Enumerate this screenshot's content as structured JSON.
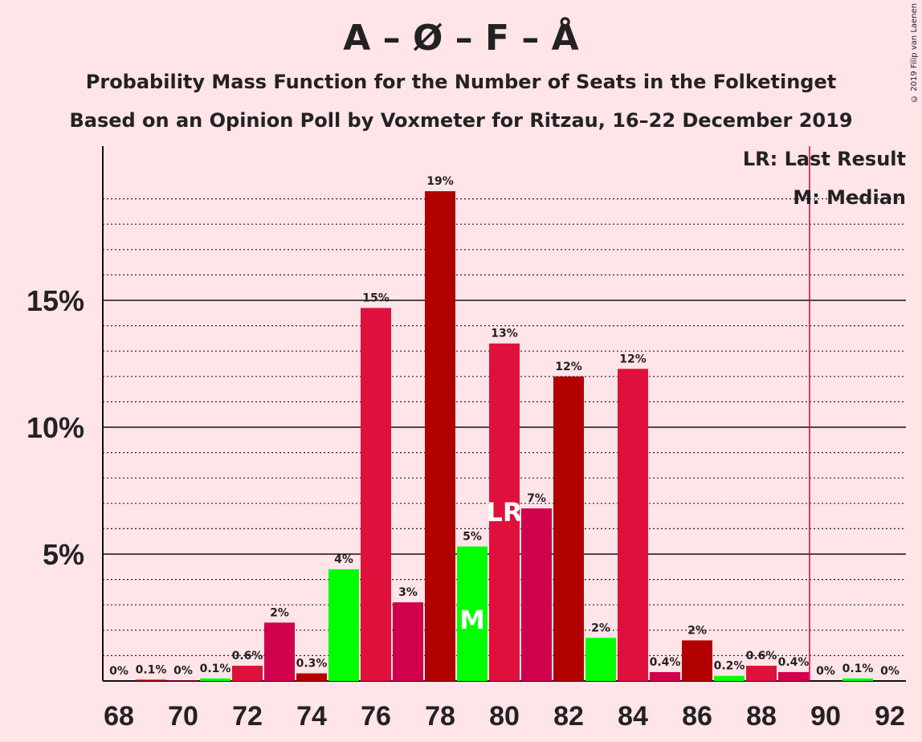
{
  "title": "A – Ø – F – Å",
  "subtitle": "Probability Mass Function for the Number of Seats in the Folketinget",
  "subtitle2": "Based on an Opinion Poll by Voxmeter for Ritzau, 16–22 December 2019",
  "copyright": "© 2019 Filip van Laenen",
  "legend": {
    "lr": "LR: Last Result",
    "m": "M: Median"
  },
  "colors": {
    "background": "#FFE4E8",
    "bar_crimson": "#E0103C",
    "bar_darkred": "#B00000",
    "bar_pinkred": "#D0004C",
    "bar_green": "#00FF00",
    "majority_line": "#D0004C"
  },
  "chart_data": {
    "type": "bar",
    "xlabel": "",
    "ylabel": "",
    "ylim": [
      0,
      21
    ],
    "y_ticks": [
      {
        "value": 5,
        "label": "5%"
      },
      {
        "value": 10,
        "label": "10%"
      },
      {
        "value": 15,
        "label": "15%"
      }
    ],
    "x_ticks": [
      {
        "value": 68,
        "label": "68"
      },
      {
        "value": 70,
        "label": "70"
      },
      {
        "value": 72,
        "label": "72"
      },
      {
        "value": 74,
        "label": "74"
      },
      {
        "value": 76,
        "label": "76"
      },
      {
        "value": 78,
        "label": "78"
      },
      {
        "value": 80,
        "label": "80"
      },
      {
        "value": 82,
        "label": "82"
      },
      {
        "value": 84,
        "label": "84"
      },
      {
        "value": 86,
        "label": "86"
      },
      {
        "value": 88,
        "label": "88"
      },
      {
        "value": 90,
        "label": "90"
      },
      {
        "value": 92,
        "label": "92"
      }
    ],
    "majority_seat": 90,
    "bars": [
      {
        "seats": 68,
        "value": 0,
        "label": "0%",
        "color": "crimson"
      },
      {
        "seats": 69,
        "value": 0.05,
        "label": "0.1%",
        "color": "darkred"
      },
      {
        "seats": 70,
        "value": 0.02,
        "label": "0%",
        "color": "pinkred"
      },
      {
        "seats": 71,
        "value": 0.1,
        "label": "0.1%",
        "color": "green"
      },
      {
        "seats": 72,
        "value": 0.6,
        "label": "0.6%",
        "color": "crimson"
      },
      {
        "seats": 73,
        "value": 2.3,
        "label": "2%",
        "color": "pinkred"
      },
      {
        "seats": 74,
        "value": 0.3,
        "label": "0.3%",
        "color": "darkred"
      },
      {
        "seats": 75,
        "value": 4.4,
        "label": "4%",
        "color": "green"
      },
      {
        "seats": 76,
        "value": 14.7,
        "label": "15%",
        "color": "crimson"
      },
      {
        "seats": 77,
        "value": 3.1,
        "label": "3%",
        "color": "pinkred"
      },
      {
        "seats": 78,
        "value": 19.3,
        "label": "19%",
        "color": "darkred"
      },
      {
        "seats": 79,
        "value": 5.3,
        "label": "5%",
        "color": "green",
        "marker": "M"
      },
      {
        "seats": 80,
        "value": 13.3,
        "label": "13%",
        "color": "crimson",
        "marker": "LR"
      },
      {
        "seats": 81,
        "value": 6.8,
        "label": "7%",
        "color": "pinkred"
      },
      {
        "seats": 82,
        "value": 12.0,
        "label": "12%",
        "color": "darkred"
      },
      {
        "seats": 83,
        "value": 1.7,
        "label": "2%",
        "color": "green"
      },
      {
        "seats": 84,
        "value": 12.3,
        "label": "12%",
        "color": "crimson"
      },
      {
        "seats": 85,
        "value": 0.35,
        "label": "0.4%",
        "color": "pinkred"
      },
      {
        "seats": 86,
        "value": 1.6,
        "label": "2%",
        "color": "darkred"
      },
      {
        "seats": 87,
        "value": 0.2,
        "label": "0.2%",
        "color": "green"
      },
      {
        "seats": 88,
        "value": 0.6,
        "label": "0.6%",
        "color": "crimson"
      },
      {
        "seats": 89,
        "value": 0.35,
        "label": "0.4%",
        "color": "pinkred"
      },
      {
        "seats": 90,
        "value": 0,
        "label": "0%",
        "color": "darkred"
      },
      {
        "seats": 91,
        "value": 0.1,
        "label": "0.1%",
        "color": "green"
      },
      {
        "seats": 92,
        "value": 0,
        "label": "0%",
        "color": "crimson"
      }
    ]
  }
}
